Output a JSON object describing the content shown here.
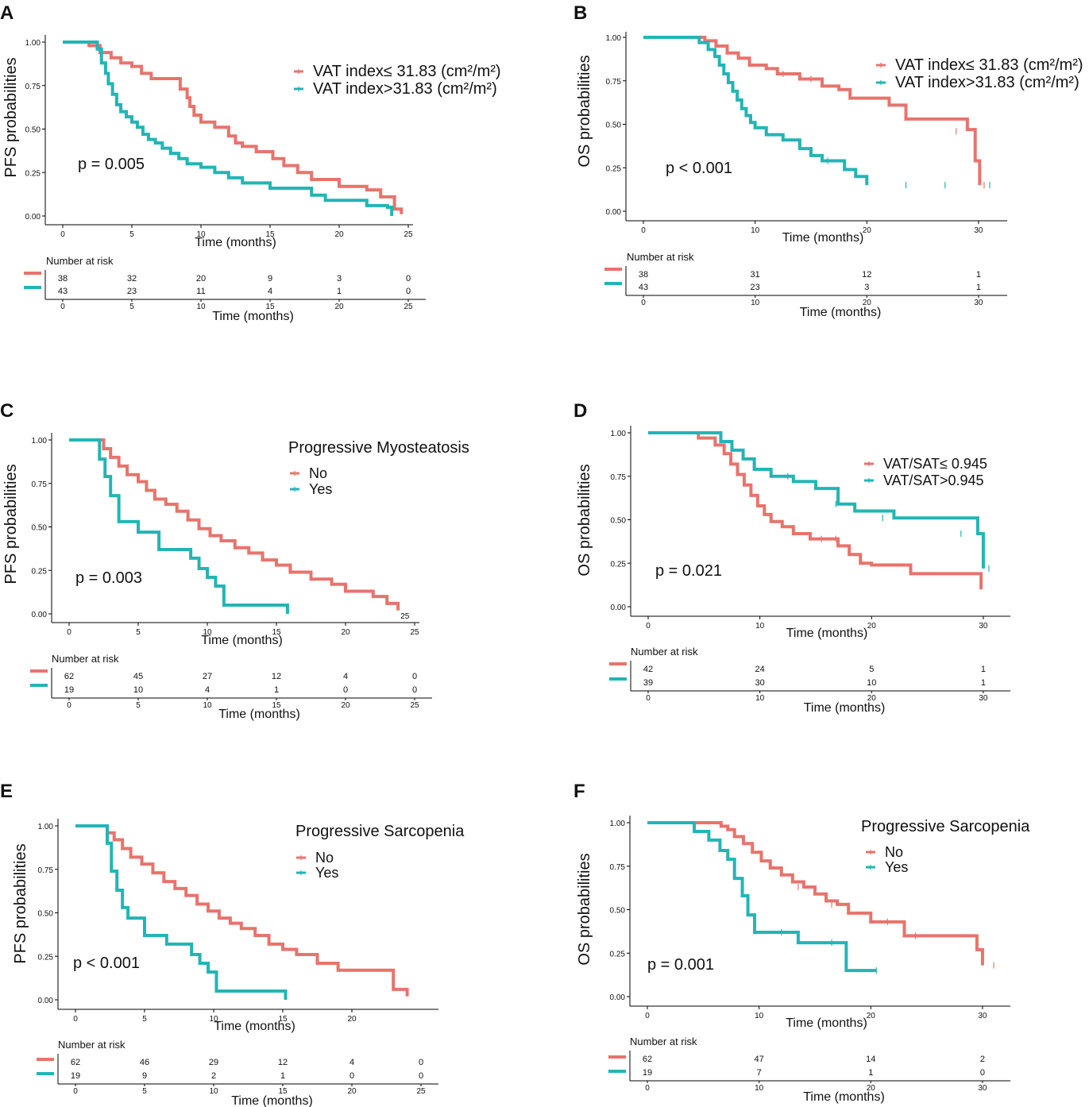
{
  "figure": {
    "panel_labels": [
      "A",
      "B",
      "C",
      "D",
      "E",
      "F"
    ],
    "colors": {
      "group1": "#E8736C",
      "group2": "#22B5B5",
      "axis": "#000000",
      "text": "#111111"
    },
    "risk_table_title": "Number at risk"
  },
  "chart_data": [
    {
      "type": "line",
      "panel": "A",
      "ylabel": "PFS probabilities",
      "xlabel": "Time (months)",
      "xlim": [
        0,
        25
      ],
      "ylim": [
        0,
        1
      ],
      "xticks": [
        "0",
        "5",
        "10",
        "15",
        "20",
        "25"
      ],
      "yticks": [
        "0.00",
        "0.25",
        "0.50",
        "0.75",
        "1.00"
      ],
      "legend_title": "",
      "p_value": "p = 0.005",
      "risk_times": [
        0,
        5,
        10,
        15,
        20,
        25
      ],
      "series": [
        {
          "name": "VAT index≤ 31.83 (cm²/m²)",
          "color": "#E8736C",
          "x": [
            0,
            1,
            1.9,
            2.7,
            3.5,
            4.2,
            5.0,
            5.7,
            6.4,
            8.5,
            9.0,
            9.2,
            9.5,
            10,
            11,
            12,
            12.5,
            13,
            14,
            15.2,
            16,
            17,
            18,
            20,
            22,
            23,
            24,
            24.5
          ],
          "y": [
            1,
            1,
            0.98,
            0.94,
            0.91,
            0.88,
            0.86,
            0.82,
            0.79,
            0.73,
            0.68,
            0.63,
            0.58,
            0.54,
            0.51,
            0.46,
            0.42,
            0.4,
            0.37,
            0.33,
            0.29,
            0.25,
            0.21,
            0.17,
            0.15,
            0.11,
            0.04,
            0.01
          ],
          "censors": []
        },
        {
          "name": "VAT index>31.83 (cm²/m²)",
          "color": "#22B5B5",
          "x": [
            0,
            1,
            2.5,
            2.8,
            3.1,
            3.3,
            3.6,
            3.9,
            4.2,
            4.6,
            5.0,
            5.4,
            5.8,
            6.2,
            6.7,
            7.2,
            7.8,
            8.4,
            9.0,
            10,
            11,
            12,
            13,
            15,
            18,
            19,
            22,
            23.5,
            23.8
          ],
          "y": [
            1,
            1,
            0.96,
            0.88,
            0.82,
            0.76,
            0.7,
            0.64,
            0.6,
            0.57,
            0.54,
            0.51,
            0.47,
            0.44,
            0.42,
            0.39,
            0.36,
            0.33,
            0.3,
            0.28,
            0.25,
            0.22,
            0.19,
            0.16,
            0.12,
            0.09,
            0.06,
            0.05,
            0.0
          ],
          "censors": []
        }
      ],
      "risk_counts": [
        [
          38,
          32,
          20,
          9,
          3,
          0
        ],
        [
          43,
          23,
          11,
          4,
          1,
          0
        ]
      ]
    },
    {
      "type": "line",
      "panel": "B",
      "ylabel": "OS probabilities",
      "xlabel": "Time (months)",
      "xlim": [
        0,
        31
      ],
      "ylim": [
        0,
        1
      ],
      "xticks": [
        "0",
        "10",
        "20",
        "30"
      ],
      "yticks": [
        "0.00",
        "0.25",
        "0.50",
        "0.75",
        "1.00"
      ],
      "legend_title": "",
      "p_value": "p < 0.001",
      "risk_times": [
        0,
        10,
        20,
        30
      ],
      "series": [
        {
          "name": "VAT index≤ 31.83 (cm²/m²)",
          "color": "#E8736C",
          "x": [
            0,
            5,
            5.5,
            6.5,
            7.5,
            8.5,
            9.5,
            11,
            12,
            14,
            16,
            17.5,
            18.5,
            22,
            23.5,
            29,
            29.7,
            30.1
          ],
          "y": [
            1,
            1,
            0.98,
            0.95,
            0.91,
            0.88,
            0.84,
            0.82,
            0.79,
            0.76,
            0.72,
            0.7,
            0.65,
            0.61,
            0.53,
            0.47,
            0.29,
            0.15
          ],
          "censors": [
            [
              12.5,
              0.79
            ],
            [
              15,
              0.76
            ],
            [
              28,
              0.46
            ],
            [
              30.5,
              0.15
            ]
          ]
        },
        {
          "name": "VAT index>31.83 (cm²/m²)",
          "color": "#22B5B5",
          "x": [
            0,
            4,
            5,
            5.8,
            6.4,
            6.8,
            7.2,
            7.6,
            8.0,
            8.4,
            8.8,
            9.2,
            9.6,
            10,
            11,
            12.5,
            14,
            15,
            16,
            18,
            19,
            20
          ],
          "y": [
            1,
            1,
            0.97,
            0.93,
            0.89,
            0.84,
            0.79,
            0.74,
            0.69,
            0.64,
            0.59,
            0.55,
            0.51,
            0.48,
            0.44,
            0.41,
            0.36,
            0.32,
            0.29,
            0.24,
            0.2,
            0.15
          ],
          "censors": [
            [
              16.5,
              0.29
            ],
            [
              23.5,
              0.15
            ],
            [
              27,
              0.15
            ],
            [
              31,
              0.15
            ]
          ]
        }
      ],
      "risk_counts": [
        [
          38,
          31,
          12,
          1
        ],
        [
          43,
          23,
          3,
          1
        ]
      ]
    },
    {
      "type": "line",
      "panel": "C",
      "ylabel": "PFS probabilities",
      "xlabel": "Time (months)",
      "xlim": [
        0,
        25
      ],
      "ylim": [
        0,
        1
      ],
      "xticks": [
        "0",
        "5",
        "10",
        "15",
        "20",
        "25"
      ],
      "yticks": [
        "0.00",
        "0.25",
        "0.50",
        "0.75",
        "1.00"
      ],
      "legend_title": "Progressive Myosteatosis",
      "p_value": "p = 0.003",
      "risk_times": [
        0,
        5,
        10,
        15,
        20,
        25
      ],
      "annotation": "25",
      "series": [
        {
          "name": "No",
          "color": "#E8736C",
          "x": [
            0,
            2,
            2.5,
            3,
            3.6,
            4.2,
            5,
            5.6,
            6.2,
            7,
            7.8,
            8.6,
            9.4,
            10.2,
            11,
            12,
            13,
            14,
            15,
            16,
            17.5,
            19,
            20,
            22,
            23,
            23.8
          ],
          "y": [
            1,
            1,
            0.95,
            0.9,
            0.85,
            0.8,
            0.76,
            0.71,
            0.66,
            0.63,
            0.59,
            0.54,
            0.49,
            0.45,
            0.42,
            0.38,
            0.35,
            0.31,
            0.28,
            0.24,
            0.2,
            0.17,
            0.13,
            0.1,
            0.06,
            0.02
          ],
          "censors": []
        },
        {
          "name": "Yes",
          "color": "#22B5B5",
          "x": [
            0,
            1.8,
            2.2,
            2.6,
            3.0,
            3.6,
            5,
            6.5,
            8.8,
            9.4,
            10,
            10.6,
            11.2,
            15.8
          ],
          "y": [
            1,
            1,
            0.89,
            0.79,
            0.68,
            0.53,
            0.47,
            0.37,
            0.32,
            0.26,
            0.21,
            0.16,
            0.05,
            0.0
          ],
          "censors": []
        }
      ],
      "risk_counts": [
        [
          62,
          45,
          27,
          12,
          4,
          0
        ],
        [
          19,
          10,
          4,
          1,
          0,
          0
        ]
      ]
    },
    {
      "type": "line",
      "panel": "D",
      "ylabel": "OS probabilities",
      "xlabel": "Time (months)",
      "xlim": [
        0,
        31
      ],
      "ylim": [
        0,
        1
      ],
      "xticks": [
        "0",
        "10",
        "20",
        "30"
      ],
      "yticks": [
        "0.00",
        "0.25",
        "0.50",
        "0.75",
        "1.00"
      ],
      "legend_title": "",
      "p_value": "p = 0.021",
      "risk_times": [
        0,
        10,
        20,
        30
      ],
      "series": [
        {
          "name": "VAT/SAT≤ 0.945",
          "color": "#E8736C",
          "x": [
            0,
            3.5,
            4.5,
            6,
            6.8,
            7.4,
            8,
            8.6,
            9.2,
            9.8,
            10.4,
            11,
            12,
            13,
            14.5,
            17,
            18,
            19,
            20,
            23.5,
            29.8
          ],
          "y": [
            1,
            1,
            0.97,
            0.93,
            0.88,
            0.82,
            0.76,
            0.7,
            0.64,
            0.58,
            0.53,
            0.49,
            0.46,
            0.42,
            0.39,
            0.35,
            0.3,
            0.25,
            0.24,
            0.19,
            0.1
          ],
          "censors": [
            [
              15.5,
              0.39
            ],
            [
              16.8,
              0.39
            ]
          ]
        },
        {
          "name": "VAT/SAT>0.945",
          "color": "#22B5B5",
          "x": [
            0,
            5.5,
            6.5,
            7.5,
            8.5,
            9.5,
            11,
            13,
            15,
            17,
            18.5,
            22,
            29.5,
            30
          ],
          "y": [
            1,
            1,
            0.95,
            0.9,
            0.85,
            0.79,
            0.75,
            0.72,
            0.68,
            0.59,
            0.55,
            0.51,
            0.42,
            0.22
          ],
          "censors": [
            [
              12.5,
              0.75
            ],
            [
              16.8,
              0.59
            ],
            [
              21,
              0.51
            ],
            [
              28,
              0.42
            ],
            [
              30.5,
              0.22
            ]
          ]
        }
      ],
      "risk_counts": [
        [
          42,
          24,
          5,
          1
        ],
        [
          39,
          30,
          10,
          1
        ]
      ]
    },
    {
      "type": "line",
      "panel": "E",
      "ylabel": "PFS probabilities",
      "xlabel": "Time (months)",
      "xlim": [
        0,
        25
      ],
      "ylim": [
        0,
        1
      ],
      "xticks": [
        "0",
        "5",
        "10",
        "15",
        "20"
      ],
      "risk_xticks": [
        "0",
        "5",
        "10",
        "15",
        "20",
        "25"
      ],
      "yticks": [
        "0.00",
        "0.25",
        "0.50",
        "0.75",
        "1.00"
      ],
      "legend_title": "Progressive Sarcopenia",
      "p_value": "p < 0.001",
      "risk_times": [
        0,
        5,
        10,
        15,
        20,
        25
      ],
      "series": [
        {
          "name": "No",
          "color": "#E8736C",
          "x": [
            0,
            2,
            2.3,
            2.8,
            3.4,
            4,
            4.8,
            5.6,
            6.4,
            7.2,
            8,
            8.8,
            9.6,
            10.4,
            11.2,
            12,
            13,
            14,
            15,
            16,
            17.5,
            19,
            23,
            24
          ],
          "y": [
            1,
            1,
            0.96,
            0.92,
            0.87,
            0.82,
            0.78,
            0.73,
            0.68,
            0.64,
            0.6,
            0.55,
            0.51,
            0.47,
            0.44,
            0.41,
            0.37,
            0.32,
            0.29,
            0.26,
            0.21,
            0.17,
            0.06,
            0.02
          ],
          "censors": []
        },
        {
          "name": "Yes",
          "color": "#22B5B5",
          "x": [
            0,
            2,
            2.3,
            2.6,
            3.0,
            3.4,
            3.8,
            5,
            6.6,
            8.4,
            9.0,
            9.6,
            10.2,
            15.2
          ],
          "y": [
            1,
            1,
            0.9,
            0.74,
            0.63,
            0.53,
            0.47,
            0.37,
            0.32,
            0.26,
            0.21,
            0.16,
            0.05,
            0.0
          ],
          "censors": []
        }
      ],
      "risk_counts": [
        [
          62,
          46,
          29,
          12,
          4,
          0
        ],
        [
          19,
          9,
          2,
          1,
          0,
          0
        ]
      ]
    },
    {
      "type": "line",
      "panel": "F",
      "ylabel": "OS probabilities",
      "xlabel": "Time (months)",
      "xlim": [
        0,
        31
      ],
      "ylim": [
        0,
        1
      ],
      "xticks": [
        "0",
        "10",
        "20",
        "30"
      ],
      "yticks": [
        "0.00",
        "0.25",
        "0.50",
        "0.75",
        "1.00"
      ],
      "legend_title": "Progressive Sarcopenia",
      "p_value": "p = 0.001",
      "risk_times": [
        0,
        10,
        20,
        30
      ],
      "series": [
        {
          "name": "No",
          "color": "#E8736C",
          "x": [
            0,
            6,
            6.6,
            7.2,
            7.8,
            8.6,
            9.4,
            10.2,
            11,
            12,
            13,
            14,
            15,
            16,
            17,
            18,
            20,
            23,
            29.5,
            30
          ],
          "y": [
            1,
            1,
            0.98,
            0.96,
            0.92,
            0.88,
            0.83,
            0.78,
            0.74,
            0.7,
            0.66,
            0.63,
            0.59,
            0.55,
            0.53,
            0.48,
            0.43,
            0.35,
            0.27,
            0.18
          ],
          "censors": [
            [
              13.5,
              0.63
            ],
            [
              16.5,
              0.53
            ],
            [
              21.5,
              0.43
            ],
            [
              24,
              0.35
            ],
            [
              31,
              0.18
            ]
          ]
        },
        {
          "name": "Yes",
          "color": "#22B5B5",
          "x": [
            0,
            3.5,
            4.2,
            5.5,
            6.5,
            7.2,
            7.8,
            8.5,
            9.0,
            9.6,
            13.5,
            17.8,
            20.5
          ],
          "y": [
            1,
            1,
            0.95,
            0.9,
            0.84,
            0.79,
            0.68,
            0.58,
            0.47,
            0.37,
            0.31,
            0.15,
            0.15
          ],
          "censors": [
            [
              12,
              0.37
            ],
            [
              16.5,
              0.31
            ],
            [
              20.5,
              0.15
            ]
          ]
        }
      ],
      "risk_counts": [
        [
          62,
          47,
          14,
          2
        ],
        [
          19,
          7,
          1,
          0
        ]
      ]
    }
  ]
}
